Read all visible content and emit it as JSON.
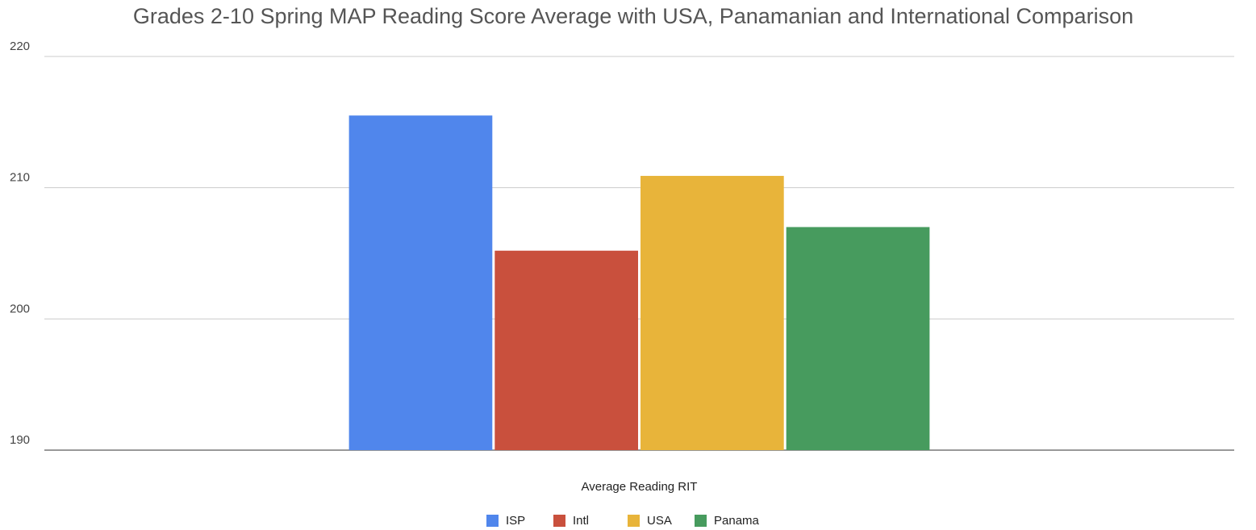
{
  "chart_data": {
    "type": "bar",
    "title": "Grades 2-10 Spring MAP Reading Score Average  with USA, Panamanian and International Comparison",
    "categories": [
      "Average Reading RIT"
    ],
    "series": [
      {
        "name": "ISP",
        "color": "#5086ec",
        "values": [
          215.5
        ]
      },
      {
        "name": "Intl",
        "color": "#c9503d",
        "values": [
          205.2
        ]
      },
      {
        "name": "USA",
        "color": "#e8b43a",
        "values": [
          210.9
        ]
      },
      {
        "name": "Panama",
        "color": "#479b5e",
        "values": [
          207.0
        ]
      }
    ],
    "ylim": [
      190,
      220
    ],
    "yticks": [
      190,
      200,
      210,
      220
    ],
    "grid": true,
    "legend": "bottom"
  }
}
